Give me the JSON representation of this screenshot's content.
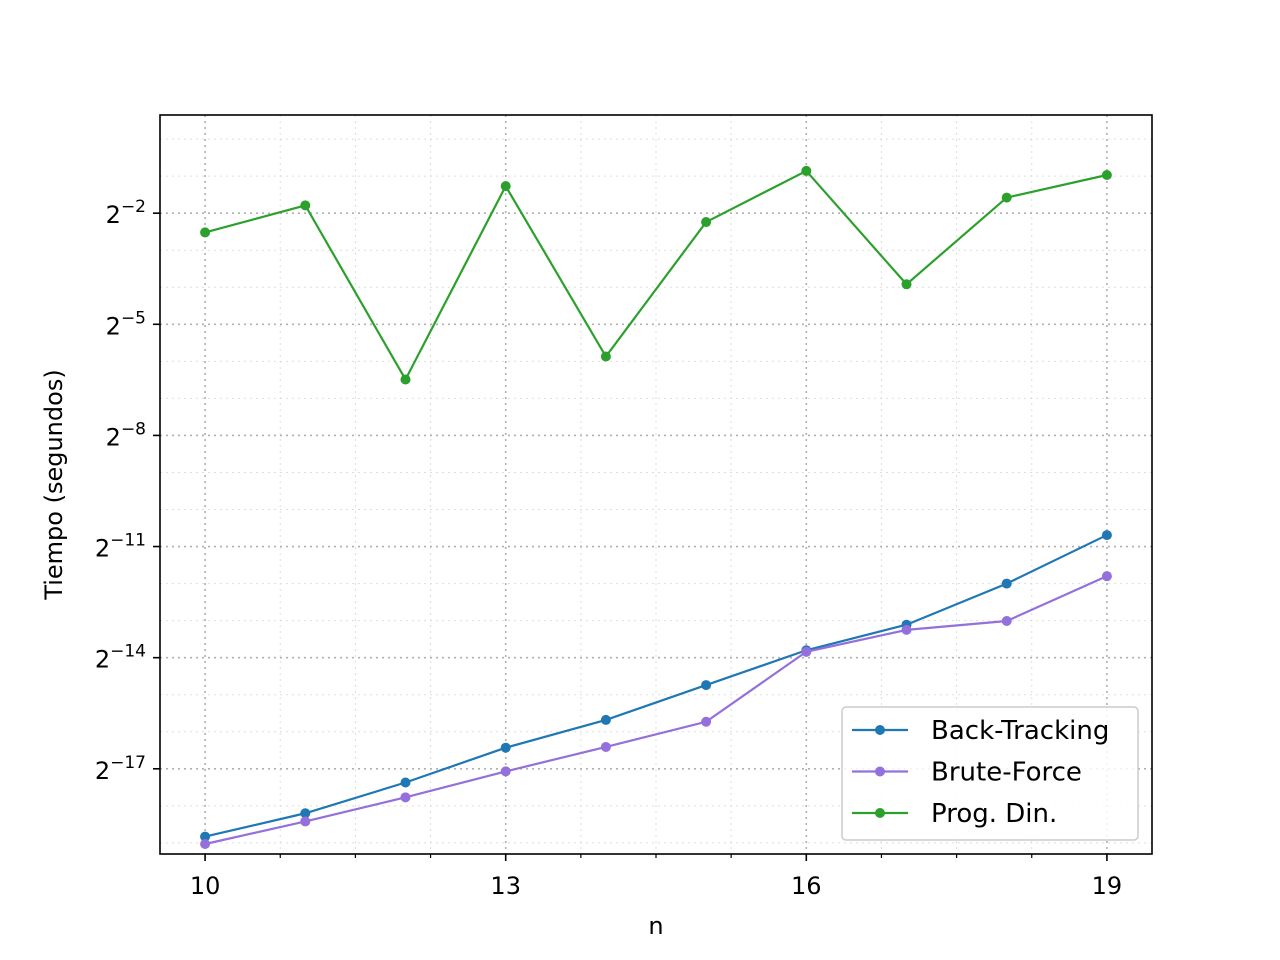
{
  "chart_data": {
    "type": "line",
    "xlabel": "n",
    "ylabel": "Tiempo (segundos)",
    "yscale": "log2",
    "xlim": [
      9.55,
      19.45
    ],
    "ylim_log2": [
      -19.3,
      0.65
    ],
    "xticks": [
      10,
      13,
      16,
      19
    ],
    "xticks_minor": [
      10.75,
      11.5,
      12.25,
      13.75,
      14.5,
      15.25,
      16.75,
      17.5,
      18.25
    ],
    "yticks": [
      {
        "base": "2",
        "exp": "−2",
        "log2": -2
      },
      {
        "base": "2",
        "exp": "−5",
        "log2": -5
      },
      {
        "base": "2",
        "exp": "−8",
        "log2": -8
      },
      {
        "base": "2",
        "exp": "−11",
        "log2": -11
      },
      {
        "base": "2",
        "exp": "−14",
        "log2": -14
      },
      {
        "base": "2",
        "exp": "−17",
        "log2": -17
      }
    ],
    "grid": true,
    "legend_position": "lower-right",
    "x": [
      10,
      11,
      12,
      13,
      14,
      15,
      16,
      17,
      18,
      19
    ],
    "series": [
      {
        "name": "Back-Tracking",
        "color": "#1f77b4",
        "log2_values": [
          -18.83,
          -18.2,
          -17.37,
          -16.43,
          -15.68,
          -14.74,
          -13.8,
          -13.11,
          -12.0,
          -10.69
        ]
      },
      {
        "name": "Brute-Force",
        "color": "#9370db",
        "log2_values": [
          -19.03,
          -18.42,
          -17.77,
          -17.07,
          -16.41,
          -15.73,
          -13.84,
          -13.25,
          -13.01,
          -11.8
        ]
      },
      {
        "name": "Prog. Din.",
        "color": "#2ca02c",
        "log2_values": [
          -2.52,
          -1.79,
          -6.49,
          -1.27,
          -5.87,
          -2.24,
          -0.86,
          -3.92,
          -1.58,
          -0.97
        ]
      }
    ]
  }
}
